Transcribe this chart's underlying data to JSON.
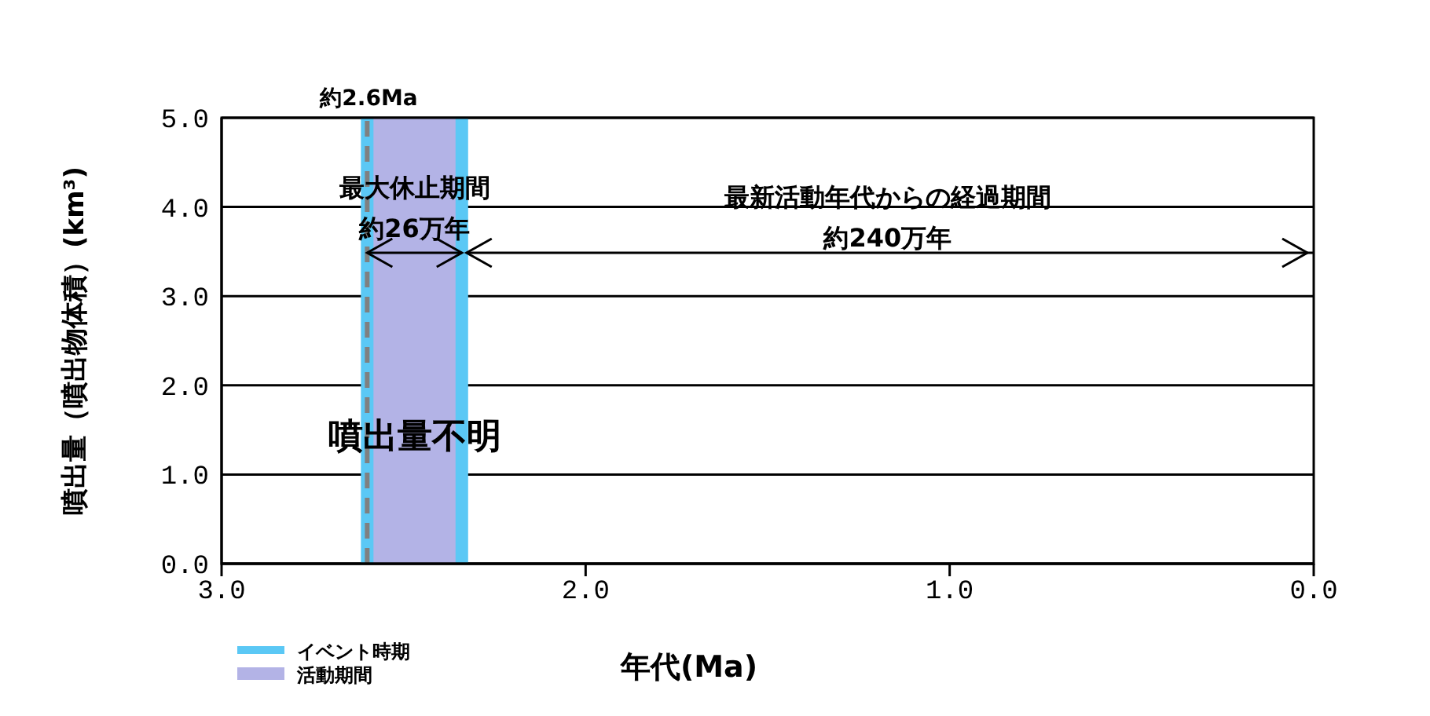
{
  "chart_data": {
    "type": "line",
    "xlabel": "年代(Ma)",
    "ylabel": "噴出量（噴出物体積）(km³)",
    "xlim": [
      3.0,
      0.0
    ],
    "xticks": [
      {
        "value": 3,
        "label": "3.0"
      },
      {
        "value": 2,
        "label": "2.0"
      },
      {
        "value": 1,
        "label": "1.0"
      },
      {
        "value": 0,
        "label": "0.0"
      }
    ],
    "ylim": [
      0,
      5
    ],
    "yticks": [
      {
        "value": 0,
        "label": "0.0"
      },
      {
        "value": 1,
        "label": "1.0"
      },
      {
        "value": 2,
        "label": "2.0"
      },
      {
        "value": 3,
        "label": "3.0"
      },
      {
        "value": 4,
        "label": "4.0"
      },
      {
        "value": 5,
        "label": "5.0"
      }
    ],
    "grid": "y",
    "legend": "bottom left",
    "bands": [
      {
        "axis": "x",
        "from": 2.6,
        "to": 2.34,
        "label": "活動期間",
        "color": "#b3b3e6"
      }
    ],
    "ref_lines": [
      {
        "axis": "x",
        "value": 2.6,
        "color": "#5bc8f5"
      },
      {
        "axis": "x",
        "value": 2.34,
        "label": "イベント時期",
        "color": "#5bc8f5"
      },
      {
        "axis": "x",
        "value": 2.6,
        "color": "#808080",
        "line_style": "dashed"
      }
    ],
    "annotations": [
      {
        "text": "約2.6Ma",
        "x": 2.6,
        "y": 5.0
      },
      "最大休止期間",
      "約26万年",
      "最新活動年代からの経過期間",
      "約240万年",
      "噴出量不明"
    ]
  }
}
